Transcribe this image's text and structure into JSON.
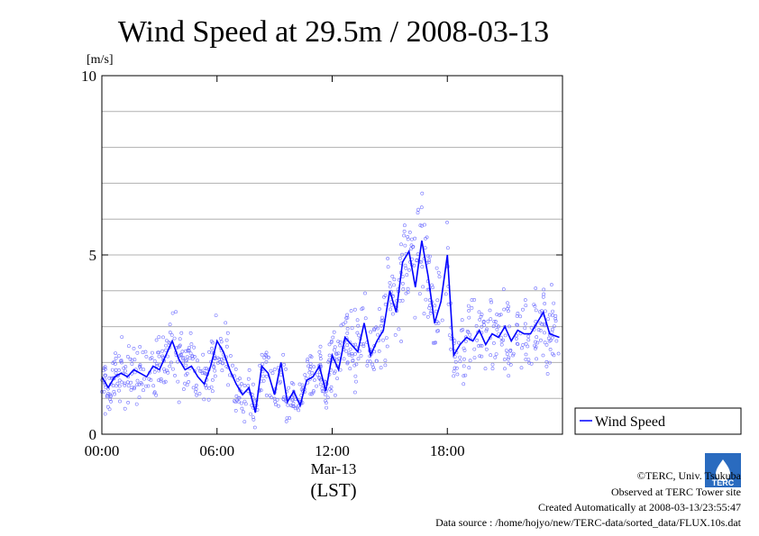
{
  "chart_data": {
    "type": "scatter",
    "title": "Wind Speed at 29.5m / 2008-03-13",
    "ylabel": "[m/s]",
    "xlabel": "(LST)",
    "date_label": "Mar-13",
    "xlim": [
      "00:00",
      "24:00"
    ],
    "ylim": [
      0,
      10
    ],
    "x_ticks": [
      "00:00",
      "06:00",
      "12:00",
      "18:00"
    ],
    "y_ticks": [
      "0",
      "5",
      "10"
    ],
    "grid": true,
    "legend": "right",
    "series": [
      {
        "name": "Wind Speed",
        "color": "#0000ff",
        "line_x": [
          "00:00",
          "00:20",
          "00:40",
          "01:00",
          "01:20",
          "01:40",
          "02:00",
          "02:20",
          "02:40",
          "03:00",
          "03:20",
          "03:40",
          "04:00",
          "04:20",
          "04:40",
          "05:00",
          "05:20",
          "05:40",
          "06:00",
          "06:20",
          "06:40",
          "07:00",
          "07:20",
          "07:40",
          "08:00",
          "08:20",
          "08:40",
          "09:00",
          "09:20",
          "09:40",
          "10:00",
          "10:20",
          "10:40",
          "11:00",
          "11:20",
          "11:40",
          "12:00",
          "12:20",
          "12:40",
          "13:00",
          "13:20",
          "13:40",
          "14:00",
          "14:20",
          "14:40",
          "15:00",
          "15:20",
          "15:40",
          "16:00",
          "16:20",
          "16:40",
          "17:00",
          "17:20",
          "17:40",
          "18:00",
          "18:20",
          "18:40",
          "19:00",
          "19:20",
          "19:40",
          "20:00",
          "20:20",
          "20:40",
          "21:00",
          "21:20",
          "21:40",
          "22:00",
          "22:20",
          "22:40",
          "23:00",
          "23:20",
          "23:50"
        ],
        "values": [
          1.6,
          1.3,
          1.6,
          1.7,
          1.6,
          1.8,
          1.7,
          1.6,
          1.9,
          1.8,
          2.2,
          2.6,
          2.1,
          1.8,
          1.9,
          1.6,
          1.4,
          1.9,
          2.6,
          2.3,
          1.8,
          1.4,
          1.1,
          1.3,
          0.6,
          1.9,
          1.7,
          1.1,
          2.0,
          0.9,
          1.2,
          0.8,
          1.5,
          1.6,
          1.9,
          1.2,
          2.2,
          1.8,
          2.7,
          2.5,
          2.3,
          3.1,
          2.2,
          2.6,
          2.9,
          4.0,
          3.4,
          4.8,
          5.1,
          4.1,
          5.4,
          4.4,
          3.1,
          3.7,
          5.0,
          2.2,
          2.5,
          2.7,
          2.6,
          2.9,
          2.5,
          2.8,
          2.7,
          3.0,
          2.6,
          2.9,
          2.8,
          2.8,
          3.1,
          3.4,
          2.8,
          2.7
        ]
      }
    ]
  },
  "legend": {
    "label": "Wind Speed"
  },
  "credits": {
    "copyright": "©TERC, Univ. Tsukuba",
    "observed": "Observed at TERC Tower site",
    "created": "Created Automatically at 2008-03-13/23:55:47",
    "source": "Data source : /home/hojyo/new/TERC-data/sorted_data/FLUX.10s.dat"
  },
  "logo": {
    "text": "TERC"
  }
}
